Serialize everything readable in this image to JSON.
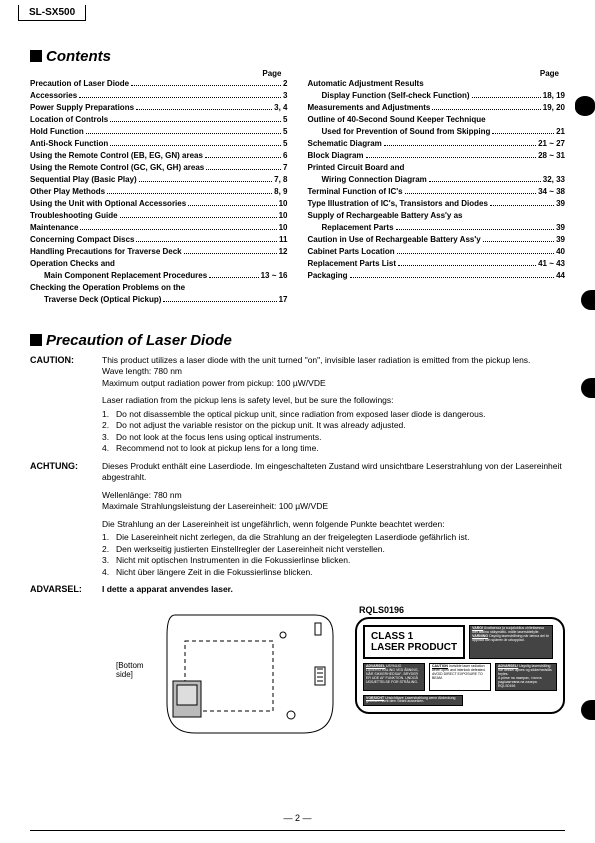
{
  "model": "SL-SX500",
  "headers": {
    "contents": "Contents",
    "precaution": "Precaution of Laser Diode",
    "page": "Page"
  },
  "toc_left": [
    {
      "label": "Precaution of Laser Diode",
      "page": "2",
      "indent": false
    },
    {
      "label": "Accessories",
      "page": "3",
      "indent": false
    },
    {
      "label": "Power Supply Preparations",
      "page": "3, 4",
      "indent": false
    },
    {
      "label": "Location of Controls",
      "page": "5",
      "indent": false
    },
    {
      "label": "Hold Function",
      "page": "5",
      "indent": false
    },
    {
      "label": "Anti-Shock Function",
      "page": "5",
      "indent": false
    },
    {
      "label": "Using the Remote Control (EB, EG, GN) areas",
      "page": "6",
      "indent": false
    },
    {
      "label": "Using the Remote Control (GC, GK, GH) areas",
      "page": "7",
      "indent": false
    },
    {
      "label": "Sequential Play (Basic Play)",
      "page": "7, 8",
      "indent": false
    },
    {
      "label": "Other Play Methods",
      "page": "8, 9",
      "indent": false
    },
    {
      "label": "Using the Unit with Optional Accessories",
      "page": "10",
      "indent": false
    },
    {
      "label": "Troubleshooting Guide",
      "page": "10",
      "indent": false
    },
    {
      "label": "Maintenance",
      "page": "10",
      "indent": false
    },
    {
      "label": "Concerning Compact Discs",
      "page": "11",
      "indent": false
    },
    {
      "label": "Handling Precautions for Traverse Deck",
      "page": "12",
      "indent": false
    },
    {
      "label": "Operation Checks and",
      "page": "",
      "indent": false,
      "nodots": true
    },
    {
      "label": "Main Component Replacement Procedures",
      "page": "13 ~ 16",
      "indent": true
    },
    {
      "label": "Checking the Operation Problems on the",
      "page": "",
      "indent": false,
      "nodots": true
    },
    {
      "label": "Traverse Deck (Optical Pickup)",
      "page": "17",
      "indent": true
    }
  ],
  "toc_right": [
    {
      "label": "Automatic Adjustment Results",
      "page": "",
      "indent": false,
      "nodots": true
    },
    {
      "label": "Display Function (Self-check Function)",
      "page": "18, 19",
      "indent": true
    },
    {
      "label": "Measurements and Adjustments",
      "page": "19, 20",
      "indent": false
    },
    {
      "label": "Outline of 40-Second Sound Keeper Technique",
      "page": "",
      "indent": false,
      "nodots": true
    },
    {
      "label": "Used for Prevention of Sound from Skipping",
      "page": "21",
      "indent": true
    },
    {
      "label": "Schematic Diagram",
      "page": "21 ~ 27",
      "indent": false
    },
    {
      "label": "Block Diagram",
      "page": "28 ~ 31",
      "indent": false
    },
    {
      "label": "Printed Circuit Board and",
      "page": "",
      "indent": false,
      "nodots": true
    },
    {
      "label": "Wiring Connection Diagram",
      "page": "32, 33",
      "indent": true
    },
    {
      "label": "Terminal Function of IC's",
      "page": "34 ~ 38",
      "indent": false
    },
    {
      "label": "Type Illustration of IC's, Transistors and Diodes",
      "page": "39",
      "indent": false
    },
    {
      "label": "Supply of Rechargeable Battery Ass'y as",
      "page": "",
      "indent": false,
      "nodots": true
    },
    {
      "label": "Replacement Parts",
      "page": "39",
      "indent": true
    },
    {
      "label": "Caution in Use of Rechargeable Battery Ass'y",
      "page": "39",
      "indent": false
    },
    {
      "label": "Cabinet Parts Location",
      "page": "40",
      "indent": false
    },
    {
      "label": "Replacement Parts List",
      "page": "41 ~ 43",
      "indent": false
    },
    {
      "label": "Packaging",
      "page": "44",
      "indent": false
    }
  ],
  "caution": {
    "label": "CAUTION:",
    "l1": "This product utilizes a laser diode with the unit turned \"on\", invisible laser radiation is emitted from the pickup lens.",
    "l2": "Wave length: 780 nm",
    "l3": "Maximum output radiation power from pickup: 100 µW/VDE",
    "l4": "Laser radiation from the pickup lens is safety level, but be sure the followings:",
    "items": [
      "Do not disassemble the optical pickup unit, since radiation from exposed laser diode is dangerous.",
      "Do not adjust the variable resistor on the pickup unit.   It was already adjusted.",
      "Do not look at the focus lens using optical instruments.",
      "Recommend not to look at pickup lens for a long time."
    ]
  },
  "achtung": {
    "label": "ACHTUNG:",
    "l1": "Dieses Produkt enthält eine Laserdiode.   Im eingeschalteten Zustand wird unsichtbare Leserstrahlung von der Lasereinheit abgestrahlt.",
    "l2": "Wellenlänge: 780 nm",
    "l3": "Maximale Strahlungsleistung der Lasereinheit: 100 µW/VDE",
    "l4": "Die Strahlung an der Lasereinheit ist ungefährlich, wenn folgende Punkte beachtet werden:",
    "items": [
      "Die Lasereinheit nicht zerlegen, da die Strahlung an der freigelegten Laserdiode gefährlich ist.",
      "Den werkseitig justierten Einstellregler der Lasereinheit nicht verstellen.",
      "Nicht mit optischen Instrumenten in die Fokussierlinse blicken.",
      "Nicht über längere Zeit in die Fokussierlinse blicken."
    ]
  },
  "advarsel": {
    "label": "ADVARSEL:",
    "text": "I dette a apparat anvendes laser."
  },
  "figure": {
    "bottom_side": "[Bottom side]",
    "plate_code": "RQLS0196",
    "class1_a": "CLASS 1",
    "class1_b": "LASER PRODUCT"
  },
  "page_number": "— 2 —"
}
